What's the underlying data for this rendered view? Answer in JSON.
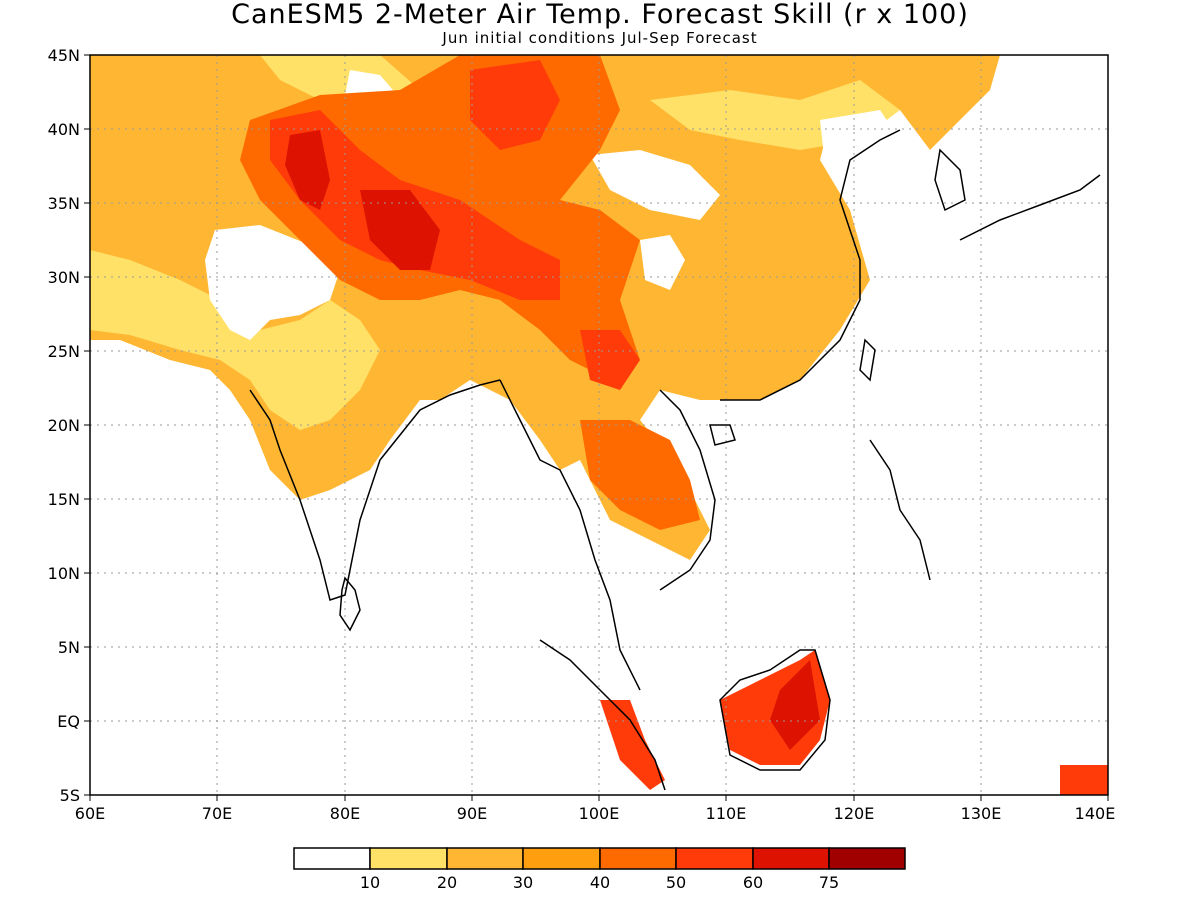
{
  "title": "CanESM5 2-Meter Air Temp. Forecast Skill (r x 100)",
  "subtitle": "Jun initial conditions  Jul-Sep Forecast",
  "map": {
    "lon_range": [
      60,
      140
    ],
    "lat_range": [
      -5,
      45
    ],
    "grid_lines": "dotted",
    "lon_ticks": [
      {
        "value": 60,
        "label": "60E"
      },
      {
        "value": 70,
        "label": "70E"
      },
      {
        "value": 80,
        "label": "80E"
      },
      {
        "value": 90,
        "label": "90E"
      },
      {
        "value": 100,
        "label": "100E"
      },
      {
        "value": 110,
        "label": "110E"
      },
      {
        "value": 120,
        "label": "120E"
      },
      {
        "value": 130,
        "label": "130E"
      },
      {
        "value": 140,
        "label": "140E"
      }
    ],
    "lat_ticks": [
      {
        "value": 45,
        "label": "45N"
      },
      {
        "value": 40,
        "label": "40N"
      },
      {
        "value": 35,
        "label": "35N"
      },
      {
        "value": 30,
        "label": "30N"
      },
      {
        "value": 25,
        "label": "25N"
      },
      {
        "value": 20,
        "label": "20N"
      },
      {
        "value": 15,
        "label": "15N"
      },
      {
        "value": 10,
        "label": "10N"
      },
      {
        "value": 5,
        "label": "5N"
      },
      {
        "value": 0,
        "label": "EQ"
      },
      {
        "value": -5,
        "label": "5S"
      }
    ]
  },
  "colorbar": {
    "colors": [
      "#ffffff",
      "#ffe168",
      "#ffb733",
      "#ff9f0f",
      "#ff6a00",
      "#ff3b0a",
      "#dd1200",
      "#a00000"
    ],
    "labels": [
      "10",
      "20",
      "30",
      "40",
      "50",
      "60",
      "75"
    ]
  },
  "colors": {
    "light": "#ffe168",
    "mid": "#ffb733",
    "orange": "#ff9f0f",
    "deep_orange": "#ff6a00",
    "red": "#ff3b0a",
    "dark_red": "#dd1200"
  }
}
